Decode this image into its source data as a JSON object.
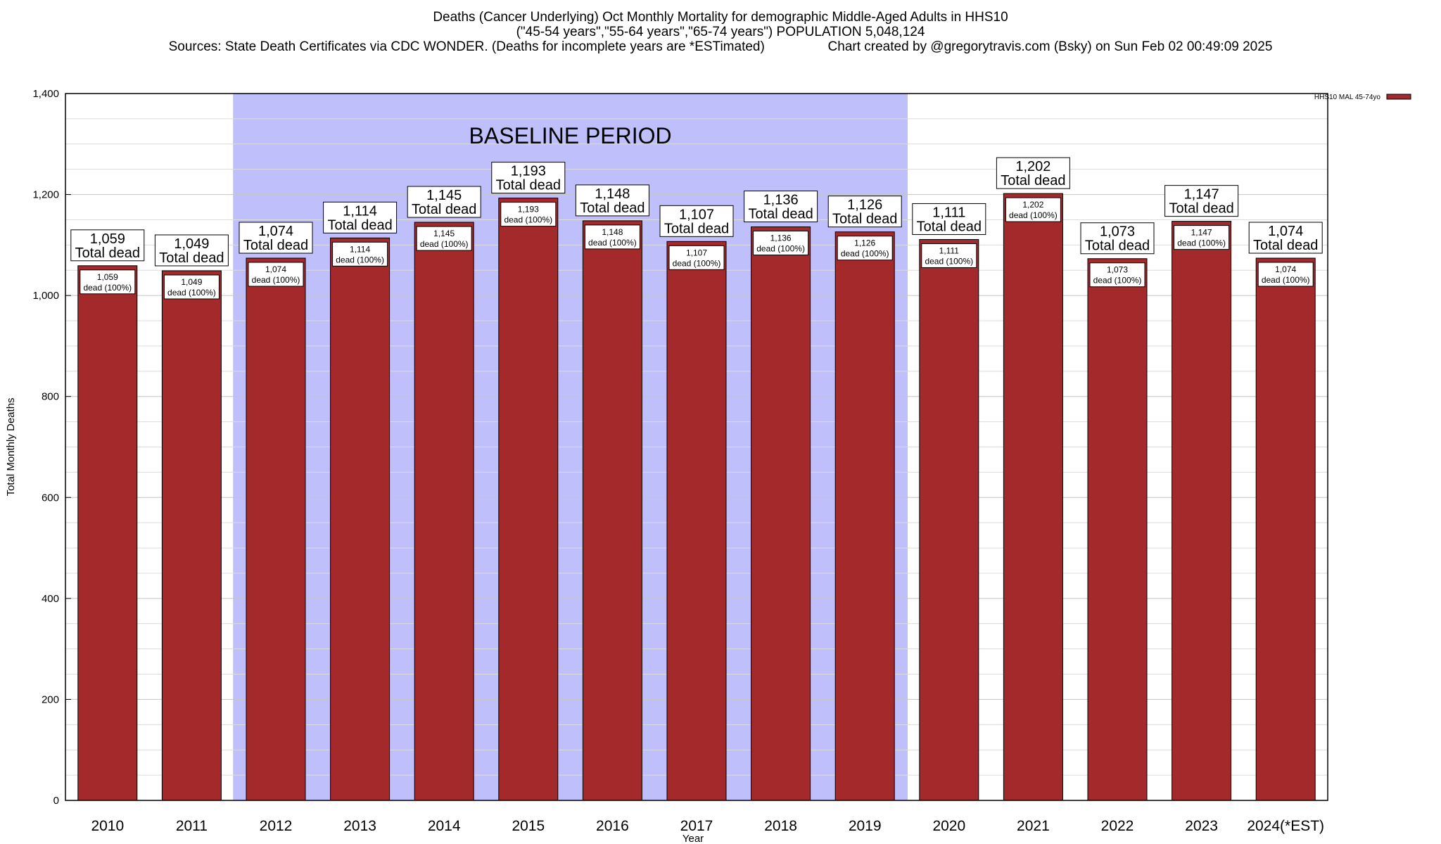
{
  "header": {
    "title_line1": "Deaths (Cancer Underlying) Oct Monthly Mortality for demographic Middle-Aged Adults in HHS10",
    "title_line2": "(\"45-54 years\",\"55-64 years\",\"65-74 years\") POPULATION 5,048,124",
    "title_line3": "Sources: State Death Certificates via CDC WONDER. (Deaths for incomplete years are *ESTimated)                 Chart created by @gregorytravis.com (Bsky) on Sun Feb 02 00:49:09 2025"
  },
  "chart_data": {
    "type": "bar",
    "xlabel": "Year",
    "ylabel": "Total Monthly Deaths",
    "ylim": [
      0,
      1400
    ],
    "y_ticks": [
      "0",
      "200",
      "400",
      "600",
      "800",
      "1,000",
      "1,200",
      "1,400"
    ],
    "y_tick_values": [
      0,
      200,
      400,
      600,
      800,
      1000,
      1200,
      1400
    ],
    "grid": true,
    "categories": [
      "2010",
      "2011",
      "2012",
      "2013",
      "2014",
      "2015",
      "2016",
      "2017",
      "2018",
      "2019",
      "2020",
      "2021",
      "2022",
      "2023",
      "2024(*EST)"
    ],
    "series": [
      {
        "name": "HHS10 MAL 45-74yo",
        "color": "#a3292b",
        "values": [
          1059,
          1049,
          1074,
          1114,
          1145,
          1193,
          1148,
          1107,
          1136,
          1126,
          1111,
          1202,
          1073,
          1147,
          1074
        ]
      }
    ],
    "total_labels": [
      "1,059",
      "1,049",
      "1,074",
      "1,114",
      "1,145",
      "1,193",
      "1,148",
      "1,107",
      "1,136",
      "1,126",
      "1,111",
      "1,202",
      "1,073",
      "1,147",
      "1,074"
    ],
    "total_suffix": "Total dead",
    "inner_suffix": "dead (100%)",
    "baseline": {
      "label": "BASELINE PERIOD",
      "from": "2012",
      "to": "2019",
      "color": "#bfbffb"
    },
    "legend": {
      "position": "top-right",
      "label": "HHS10 MAL 45-74yo"
    }
  }
}
